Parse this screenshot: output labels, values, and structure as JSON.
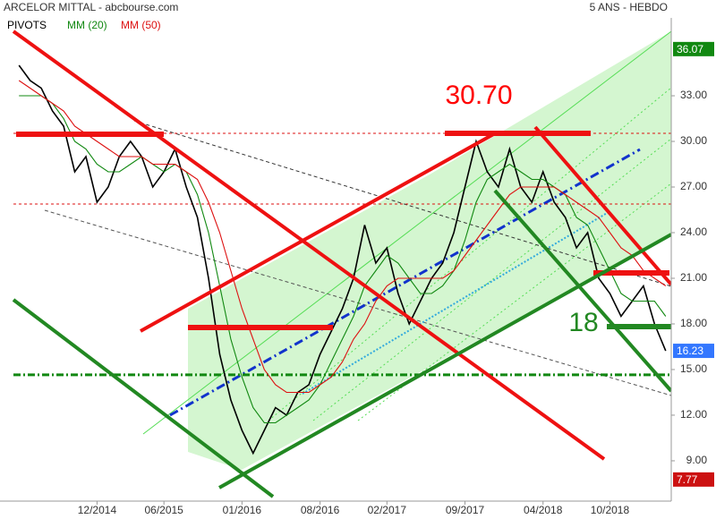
{
  "chart_data": {
    "type": "line",
    "title": "ARCELOR MITTAL - abcbourse.com",
    "subtitle": "5 ANS - HEBDO",
    "categories": [
      null,
      null,
      null,
      null,
      null,
      null,
      null,
      "12/2014",
      null,
      null,
      null,
      null,
      null,
      "06/2015",
      null,
      null,
      null,
      null,
      null,
      null,
      "01/2016",
      null,
      null,
      null,
      null,
      null,
      null,
      "08/2016",
      null,
      null,
      null,
      null,
      null,
      "02/2017",
      null,
      null,
      null,
      null,
      null,
      null,
      "09/2017",
      null,
      null,
      null,
      null,
      null,
      null,
      "04/2018",
      null,
      null,
      null,
      null,
      null,
      "10/2018",
      null,
      null,
      null,
      null,
      null
    ],
    "series": [
      {
        "color": "#000000",
        "values": [
          35,
          34,
          33.5,
          32,
          31,
          28,
          29,
          26,
          27,
          29,
          30,
          29,
          27,
          28,
          29.5,
          27,
          25,
          21,
          16,
          13,
          11,
          9.5,
          11,
          12.5,
          12,
          13.5,
          14,
          16,
          17.5,
          19,
          21,
          24.5,
          22,
          23,
          20,
          18,
          19.5,
          21,
          22,
          24,
          27,
          30,
          28,
          27,
          29.5,
          27,
          26,
          28,
          26,
          25,
          23,
          24,
          21,
          20,
          18.5,
          19.5,
          20.5,
          18,
          16.23
        ]
      },
      {
        "name": "MM (20)",
        "color": "#118811",
        "values": [
          33,
          33,
          33,
          32.5,
          31.5,
          30,
          29.5,
          28.5,
          28,
          28,
          28.5,
          29,
          28.5,
          28,
          28.5,
          28,
          26.5,
          24,
          20.5,
          17,
          14.5,
          12.5,
          11.5,
          11.5,
          12,
          12.5,
          13,
          14,
          15.5,
          17,
          18.5,
          20.5,
          21.5,
          22.5,
          22,
          21,
          20,
          20,
          20.5,
          21.5,
          23.5,
          26,
          27.5,
          28,
          28.5,
          28,
          27.5,
          27.5,
          27,
          26.5,
          25,
          24.5,
          23,
          21.5,
          20,
          19.5,
          19.5,
          19.5,
          18.5
        ]
      },
      {
        "name": "MM (50)",
        "color": "#dd1111",
        "values": [
          34,
          33.5,
          33,
          32.5,
          32,
          31,
          30.5,
          30,
          29.5,
          29,
          29,
          29,
          28.5,
          28.5,
          28.5,
          28,
          27.5,
          26,
          24,
          21.5,
          19,
          17,
          15,
          14,
          13.5,
          13.5,
          13.5,
          14,
          14.5,
          15.5,
          17,
          18,
          19.5,
          20.5,
          21,
          21,
          21,
          21,
          21,
          21.5,
          22.5,
          23.5,
          24.5,
          25.5,
          26.5,
          27,
          27,
          27,
          27,
          26.5,
          26,
          25.5,
          25,
          24,
          23,
          22.5,
          21.5,
          21,
          20.5
        ]
      }
    ],
    "pivots": {
      "name": "PIVOTS",
      "color": "#000000",
      "values": [
        30.53,
        25.88,
        14.65
      ],
      "colors": [
        "#dd1111",
        "#dd1111",
        "#118811"
      ]
    },
    "value_boxes": [
      {
        "value": 36.07,
        "color": "#118811"
      },
      {
        "value": 16.23,
        "color": "#3377ff"
      },
      {
        "value": 7.77,
        "color": "#cc1111"
      }
    ],
    "annotations": [
      {
        "text": "30.70",
        "color": "#ff0000"
      },
      {
        "text": "18",
        "color": "#228822"
      }
    ],
    "ylim": [
      6.35,
      38.12
    ],
    "yticks": [
      {
        "value": 9,
        "label": "9.00"
      },
      {
        "value": 12,
        "label": "12.00"
      },
      {
        "value": 15,
        "label": "15.00"
      },
      {
        "value": 18,
        "label": "18.00"
      },
      {
        "value": 21,
        "label": "21.00"
      },
      {
        "value": 24,
        "label": "24.00"
      },
      {
        "value": 27,
        "label": "27.00"
      },
      {
        "value": 30,
        "label": "30.00"
      },
      {
        "value": 33,
        "label": "33.00"
      }
    ]
  }
}
